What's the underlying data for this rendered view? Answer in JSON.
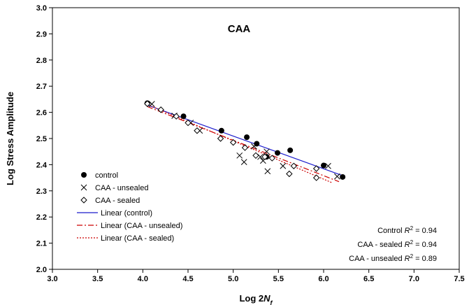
{
  "chart_data": {
    "type": "scatter",
    "title": "CAA",
    "xlabel": "Log 2",
    "xlabel_var": "N",
    "xlabel_sub": "f",
    "ylabel": "Log Stress Amplitude",
    "xlim": [
      3.0,
      7.5
    ],
    "ylim": [
      2.0,
      3.0
    ],
    "xticks": [
      "3.0",
      "3.5",
      "4.0",
      "4.5",
      "5.0",
      "5.5",
      "6.0",
      "6.5",
      "7.0",
      "7.5"
    ],
    "yticks": [
      "2.0",
      "2.1",
      "2.2",
      "2.3",
      "2.4",
      "2.5",
      "2.6",
      "2.7",
      "2.8",
      "2.9",
      "3.0"
    ],
    "grid": false,
    "legend_position": "bottom-left",
    "series": [
      {
        "name": "control",
        "marker": "filled-circle",
        "color": "#000000",
        "points": [
          [
            4.05,
            2.635
          ],
          [
            4.45,
            2.585
          ],
          [
            4.87,
            2.53
          ],
          [
            5.15,
            2.505
          ],
          [
            5.26,
            2.48
          ],
          [
            5.37,
            2.43
          ],
          [
            5.49,
            2.445
          ],
          [
            5.63,
            2.455
          ],
          [
            6.0,
            2.397
          ],
          [
            6.21,
            2.353
          ]
        ]
      },
      {
        "name": "CAA - unsealed",
        "marker": "x",
        "color": "#000000",
        "points": [
          [
            4.1,
            2.632
          ],
          [
            4.35,
            2.587
          ],
          [
            4.53,
            2.56
          ],
          [
            4.63,
            2.53
          ],
          [
            5.07,
            2.435
          ],
          [
            5.12,
            2.41
          ],
          [
            5.23,
            2.47
          ],
          [
            5.3,
            2.43
          ],
          [
            5.33,
            2.415
          ],
          [
            5.37,
            2.45
          ],
          [
            5.38,
            2.375
          ],
          [
            5.55,
            2.395
          ],
          [
            6.05,
            2.395
          ],
          [
            6.15,
            2.355
          ]
        ]
      },
      {
        "name": "CAA - sealed",
        "marker": "open-diamond",
        "color": "#000000",
        "points": [
          [
            4.05,
            2.633
          ],
          [
            4.2,
            2.61
          ],
          [
            4.37,
            2.585
          ],
          [
            4.5,
            2.56
          ],
          [
            4.6,
            2.53
          ],
          [
            4.86,
            2.5
          ],
          [
            5.0,
            2.485
          ],
          [
            5.13,
            2.465
          ],
          [
            5.25,
            2.435
          ],
          [
            5.35,
            2.43
          ],
          [
            5.43,
            2.425
          ],
          [
            5.62,
            2.365
          ],
          [
            5.67,
            2.395
          ],
          [
            5.92,
            2.385
          ],
          [
            5.92,
            2.35
          ]
        ]
      },
      {
        "name": "Linear (control)",
        "type": "line",
        "style": "solid",
        "color": "#1a1acc",
        "points": [
          [
            4.05,
            2.628
          ],
          [
            6.21,
            2.358
          ]
        ]
      },
      {
        "name": "Linear (CAA - unsealed)",
        "type": "line",
        "style": "dashdot",
        "color": "#cc0000",
        "points": [
          [
            4.05,
            2.622
          ],
          [
            6.17,
            2.335
          ]
        ]
      },
      {
        "name": "Linear (CAA - sealed)",
        "type": "line",
        "style": "dotted",
        "color": "#cc0000",
        "points": [
          [
            4.05,
            2.63
          ],
          [
            6.1,
            2.33
          ]
        ]
      }
    ],
    "annotations": [
      {
        "label": "Control",
        "r2_value": "0.94"
      },
      {
        "label": "CAA - sealed",
        "r2_value": "0.94"
      },
      {
        "label": "CAA - unsealed",
        "r2_value": "0.89"
      }
    ],
    "r2_symbol": "R",
    "r2_exponent": "2",
    "r2_equals": " = "
  }
}
